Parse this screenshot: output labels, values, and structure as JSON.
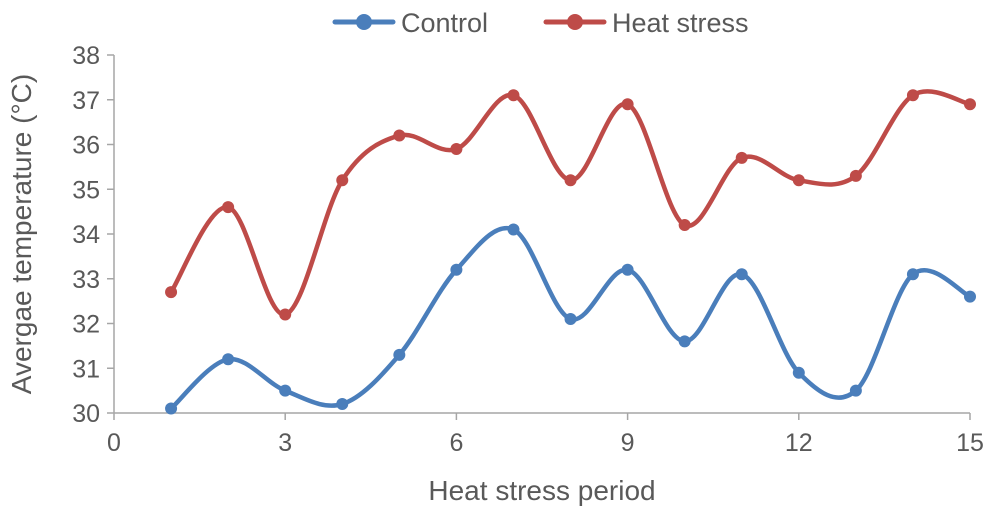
{
  "chart_data": {
    "type": "line",
    "title": "",
    "xlabel": "Heat stress period",
    "ylabel": "Avergae temperature (°C)",
    "xlim": [
      0,
      15
    ],
    "ylim": [
      30,
      38
    ],
    "xticks": [
      0,
      3,
      6,
      9,
      12,
      15
    ],
    "yticks": [
      30,
      31,
      32,
      33,
      34,
      35,
      36,
      37,
      38
    ],
    "grid": false,
    "legend_position": "top-center",
    "smooth": true,
    "x": [
      1,
      2,
      3,
      4,
      5,
      6,
      7,
      8,
      9,
      10,
      11,
      12,
      13,
      14,
      15
    ],
    "series": [
      {
        "name": "Control",
        "color": "#4a7ebb",
        "values": [
          30.1,
          31.2,
          30.5,
          30.2,
          31.3,
          33.2,
          34.1,
          32.1,
          33.2,
          31.6,
          33.1,
          30.9,
          30.5,
          33.1,
          32.6
        ]
      },
      {
        "name": "Heat stress",
        "color": "#be4b48",
        "values": [
          32.7,
          34.6,
          32.2,
          35.2,
          36.2,
          35.9,
          37.1,
          35.2,
          36.9,
          34.2,
          35.7,
          35.2,
          35.3,
          37.1,
          36.9
        ]
      }
    ]
  }
}
